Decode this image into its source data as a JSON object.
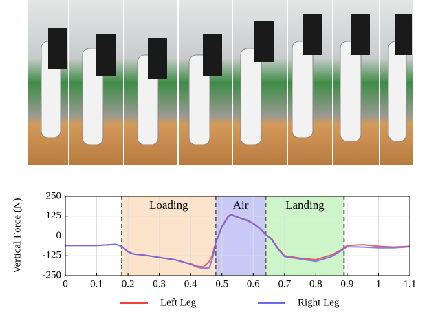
{
  "chart_data": {
    "type": "line",
    "y_label": "Vertical Force (N)",
    "xlim": [
      0,
      1.1
    ],
    "ylim": [
      -250,
      250
    ],
    "xticks": [
      0,
      0.1,
      0.2,
      0.3,
      0.4,
      0.5,
      0.6,
      0.7,
      0.8,
      0.9,
      1,
      1.1
    ],
    "yticks": [
      -250,
      -125,
      0,
      125,
      250
    ],
    "grid": true,
    "regions": [
      {
        "label": "Loading",
        "start": 0.18,
        "end": 0.48,
        "color": "#fbe3cc"
      },
      {
        "label": "Air",
        "start": 0.48,
        "end": 0.64,
        "color": "#c9c9f5"
      },
      {
        "label": "Landing",
        "start": 0.64,
        "end": 0.89,
        "color": "#cdf5c9"
      }
    ],
    "x": [
      0,
      0.05,
      0.1,
      0.14,
      0.16,
      0.18,
      0.2,
      0.22,
      0.25,
      0.3,
      0.35,
      0.4,
      0.42,
      0.44,
      0.46,
      0.47,
      0.48,
      0.5,
      0.52,
      0.53,
      0.55,
      0.58,
      0.6,
      0.62,
      0.64,
      0.66,
      0.68,
      0.7,
      0.75,
      0.8,
      0.85,
      0.88,
      0.9,
      0.95,
      1,
      1.05,
      1.1
    ],
    "series": [
      {
        "name": "Left Leg",
        "color": "#f04040",
        "values": [
          -60,
          -60,
          -60,
          -55,
          -52,
          -65,
          -100,
          -115,
          -120,
          -135,
          -150,
          -175,
          -190,
          -195,
          -160,
          -120,
          -40,
          60,
          125,
          135,
          120,
          100,
          80,
          50,
          10,
          -20,
          -80,
          -125,
          -140,
          -150,
          -120,
          -90,
          -60,
          -55,
          -65,
          -70,
          -65
        ]
      },
      {
        "name": "Right Leg",
        "color": "#6a6af0",
        "values": [
          -60,
          -60,
          -60,
          -55,
          -52,
          -65,
          -100,
          -115,
          -120,
          -135,
          -150,
          -178,
          -195,
          -205,
          -200,
          -140,
          -45,
          55,
          120,
          132,
          118,
          98,
          78,
          48,
          8,
          -25,
          -85,
          -130,
          -145,
          -160,
          -130,
          -95,
          -68,
          -70,
          -75,
          -75,
          -68
        ]
      }
    ]
  }
}
